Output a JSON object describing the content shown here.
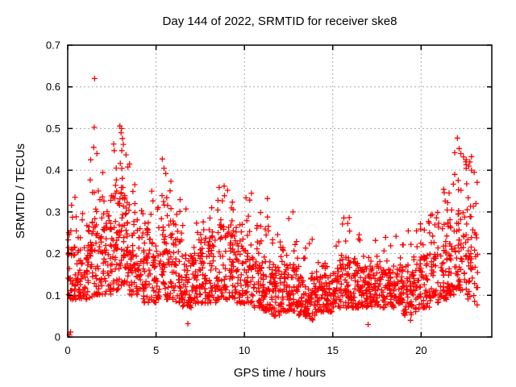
{
  "chart_data": {
    "type": "scatter",
    "title": "Day 144 of 2022, SRMTID for receiver ske8",
    "xlabel": "GPS time / hours",
    "ylabel": "SRMTID / TECUs",
    "xlim": [
      0,
      24
    ],
    "ylim": [
      0,
      0.7
    ],
    "xticks": [
      0,
      5,
      10,
      15,
      20
    ],
    "yticks": [
      0,
      0.1,
      0.2,
      0.3,
      0.4,
      0.5,
      0.6,
      0.7
    ],
    "grid": true,
    "legend": "none",
    "marker": "plus",
    "marker_color": "#ff0000",
    "grid_color": "#a8a8a8",
    "axis_color": "#000000",
    "background_color": "#ffffff",
    "series_name": "SRMTID",
    "seed": 144,
    "envelope": {
      "comment": "dense scatter ~2100 pts summarized per time bin: [t_start_h, t_end_h, dense_lo_TECU, dense_hi_TECU, bin_max_TECU, n_points]",
      "bins": [
        [
          0.0,
          0.5,
          0.09,
          0.26,
          0.35,
          46
        ],
        [
          0.5,
          1.0,
          0.09,
          0.22,
          0.32,
          44
        ],
        [
          1.0,
          1.5,
          0.09,
          0.28,
          0.42,
          46
        ],
        [
          1.5,
          2.0,
          0.1,
          0.32,
          0.45,
          48
        ],
        [
          2.0,
          2.5,
          0.1,
          0.3,
          0.38,
          50
        ],
        [
          2.5,
          3.0,
          0.11,
          0.33,
          0.42,
          52
        ],
        [
          3.0,
          3.5,
          0.12,
          0.35,
          0.44,
          55
        ],
        [
          3.5,
          4.0,
          0.1,
          0.3,
          0.41,
          50
        ],
        [
          4.0,
          4.5,
          0.08,
          0.25,
          0.36,
          46
        ],
        [
          4.5,
          5.0,
          0.08,
          0.27,
          0.35,
          46
        ],
        [
          5.0,
          5.5,
          0.09,
          0.28,
          0.37,
          46
        ],
        [
          5.5,
          6.0,
          0.09,
          0.28,
          0.42,
          46
        ],
        [
          6.0,
          6.5,
          0.08,
          0.24,
          0.34,
          44
        ],
        [
          6.5,
          7.0,
          0.07,
          0.21,
          0.33,
          44
        ],
        [
          7.0,
          7.5,
          0.08,
          0.21,
          0.28,
          44
        ],
        [
          7.5,
          8.0,
          0.08,
          0.22,
          0.3,
          44
        ],
        [
          8.0,
          8.5,
          0.08,
          0.24,
          0.31,
          44
        ],
        [
          8.5,
          9.0,
          0.09,
          0.27,
          0.36,
          46
        ],
        [
          9.0,
          9.5,
          0.09,
          0.26,
          0.35,
          46
        ],
        [
          9.5,
          10.0,
          0.08,
          0.23,
          0.3,
          44
        ],
        [
          10.0,
          10.5,
          0.08,
          0.21,
          0.34,
          46
        ],
        [
          10.5,
          11.0,
          0.07,
          0.19,
          0.3,
          46
        ],
        [
          11.0,
          11.5,
          0.06,
          0.19,
          0.31,
          48
        ],
        [
          11.5,
          12.0,
          0.05,
          0.17,
          0.27,
          46
        ],
        [
          12.0,
          12.5,
          0.06,
          0.17,
          0.25,
          46
        ],
        [
          12.5,
          13.0,
          0.06,
          0.17,
          0.3,
          48
        ],
        [
          13.0,
          13.5,
          0.05,
          0.15,
          0.22,
          46
        ],
        [
          13.5,
          14.0,
          0.04,
          0.15,
          0.24,
          46
        ],
        [
          14.0,
          14.5,
          0.06,
          0.15,
          0.21,
          44
        ],
        [
          14.5,
          15.0,
          0.06,
          0.15,
          0.2,
          44
        ],
        [
          15.0,
          15.5,
          0.07,
          0.17,
          0.24,
          44
        ],
        [
          15.5,
          16.0,
          0.07,
          0.19,
          0.3,
          46
        ],
        [
          16.0,
          16.5,
          0.07,
          0.19,
          0.28,
          46
        ],
        [
          16.5,
          17.0,
          0.07,
          0.17,
          0.25,
          44
        ],
        [
          17.0,
          17.5,
          0.07,
          0.17,
          0.24,
          44
        ],
        [
          17.5,
          18.0,
          0.07,
          0.17,
          0.25,
          44
        ],
        [
          18.0,
          18.5,
          0.07,
          0.16,
          0.22,
          44
        ],
        [
          18.5,
          19.0,
          0.08,
          0.17,
          0.25,
          44
        ],
        [
          19.0,
          19.5,
          0.05,
          0.17,
          0.26,
          42
        ],
        [
          19.5,
          20.0,
          0.06,
          0.19,
          0.28,
          42
        ],
        [
          20.0,
          20.5,
          0.07,
          0.21,
          0.29,
          42
        ],
        [
          20.5,
          21.0,
          0.08,
          0.23,
          0.3,
          42
        ],
        [
          21.0,
          21.5,
          0.09,
          0.27,
          0.36,
          44
        ],
        [
          21.5,
          22.0,
          0.1,
          0.32,
          0.43,
          46
        ],
        [
          22.0,
          22.5,
          0.11,
          0.36,
          0.46,
          46
        ],
        [
          22.5,
          23.0,
          0.09,
          0.33,
          0.44,
          44
        ],
        [
          23.0,
          23.25,
          0.07,
          0.25,
          0.4,
          14
        ]
      ]
    },
    "outliers": [
      [
        0.1,
        0.005
      ],
      [
        0.16,
        0.012
      ],
      [
        1.3,
        0.425
      ],
      [
        1.47,
        0.455
      ],
      [
        1.5,
        0.503
      ],
      [
        1.52,
        0.62
      ],
      [
        1.65,
        0.44
      ],
      [
        2.6,
        0.463
      ],
      [
        2.63,
        0.447
      ],
      [
        2.95,
        0.506
      ],
      [
        3.02,
        0.49
      ],
      [
        3.05,
        0.5
      ],
      [
        3.06,
        0.447
      ],
      [
        3.1,
        0.476
      ],
      [
        3.15,
        0.462
      ],
      [
        3.3,
        0.437
      ],
      [
        3.5,
        0.415
      ],
      [
        5.35,
        0.427
      ],
      [
        5.45,
        0.405
      ],
      [
        5.55,
        0.392
      ],
      [
        6.8,
        0.032
      ],
      [
        8.85,
        0.362
      ],
      [
        9.05,
        0.352
      ],
      [
        10.4,
        0.345
      ],
      [
        11.3,
        0.332
      ],
      [
        12.75,
        0.3
      ],
      [
        17.0,
        0.03
      ],
      [
        19.4,
        0.04
      ],
      [
        21.9,
        0.442
      ],
      [
        22.05,
        0.477
      ],
      [
        22.15,
        0.452
      ],
      [
        22.25,
        0.44
      ],
      [
        22.4,
        0.432
      ],
      [
        22.55,
        0.425
      ],
      [
        22.7,
        0.41
      ],
      [
        22.85,
        0.4
      ],
      [
        23.0,
        0.395
      ],
      [
        23.1,
        0.32
      ]
    ]
  }
}
